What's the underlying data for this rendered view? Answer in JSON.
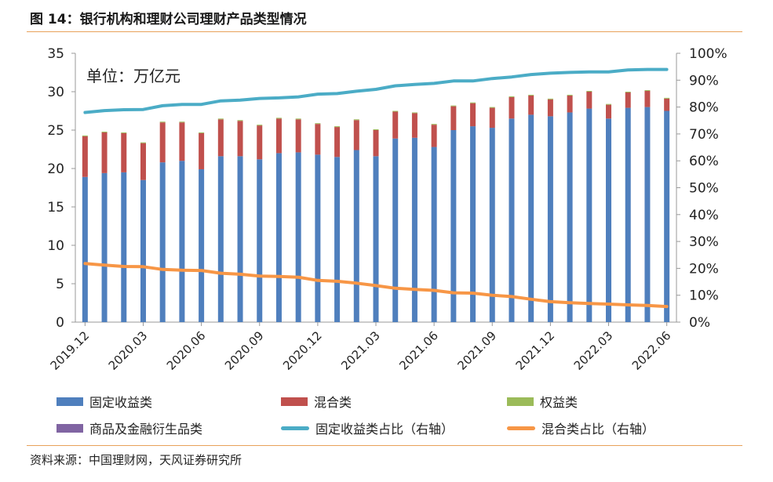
{
  "figure": {
    "title": "图 14：银行机构和理财公司理财产品类型情况",
    "source": "资料来源：中国理财网，天风证券研究所"
  },
  "chart_data": {
    "type": "bar",
    "stacked": true,
    "unit_label": "单位：万亿元",
    "categories": [
      "2019.12",
      "2020.01",
      "2020.02",
      "2020.03",
      "2020.04",
      "2020.05",
      "2020.06",
      "2020.07",
      "2020.08",
      "2020.09",
      "2020.10",
      "2020.11",
      "2020.12",
      "2021.01",
      "2021.02",
      "2021.03",
      "2021.04",
      "2021.05",
      "2021.06",
      "2021.07",
      "2021.08",
      "2021.09",
      "2021.10",
      "2021.11",
      "2021.12",
      "2022.01",
      "2022.02",
      "2022.03",
      "2022.04",
      "2022.05",
      "2022.06"
    ],
    "tick_labels": [
      "2019.12",
      "2020.03",
      "2020.06",
      "2020.09",
      "2020.12",
      "2021.03",
      "2021.06",
      "2021.09",
      "2021.12",
      "2022.03",
      "2022.06"
    ],
    "tick_indices": [
      0,
      3,
      6,
      9,
      12,
      15,
      18,
      21,
      24,
      27,
      30
    ],
    "series": [
      {
        "name": "固定收益类",
        "color": "#4f7fbd",
        "axis": "left",
        "values": [
          18.9,
          19.4,
          19.5,
          18.5,
          20.8,
          21.0,
          19.9,
          21.6,
          21.6,
          21.2,
          22.0,
          22.1,
          21.8,
          21.5,
          22.4,
          21.6,
          23.9,
          24.0,
          22.8,
          25.0,
          25.5,
          25.3,
          26.5,
          27.0,
          26.8,
          27.3,
          27.8,
          26.5,
          27.9,
          28.0,
          27.5
        ]
      },
      {
        "name": "混合类",
        "color": "#c0504d",
        "axis": "left",
        "values": [
          5.3,
          5.3,
          5.1,
          4.8,
          5.2,
          5.0,
          4.7,
          4.8,
          4.6,
          4.4,
          4.5,
          4.3,
          4.0,
          3.9,
          3.9,
          3.4,
          3.5,
          3.2,
          2.9,
          3.1,
          3.0,
          2.6,
          2.8,
          2.5,
          2.2,
          2.2,
          2.2,
          1.8,
          2.0,
          2.1,
          1.6
        ]
      },
      {
        "name": "权益类",
        "color": "#9bbb59",
        "axis": "left",
        "values": [
          0.1,
          0.1,
          0.1,
          0.1,
          0.1,
          0.1,
          0.1,
          0.1,
          0.1,
          0.1,
          0.1,
          0.1,
          0.1,
          0.1,
          0.1,
          0.1,
          0.1,
          0.1,
          0.1,
          0.1,
          0.1,
          0.1,
          0.1,
          0.1,
          0.1,
          0.1,
          0.1,
          0.1,
          0.1,
          0.1,
          0.1
        ]
      },
      {
        "name": "商品及金融衍生品类",
        "color": "#8064a2",
        "axis": "left",
        "values": [
          0,
          0,
          0,
          0,
          0,
          0,
          0,
          0,
          0,
          0,
          0,
          0,
          0,
          0,
          0,
          0,
          0,
          0,
          0,
          0,
          0,
          0,
          0,
          0,
          0,
          0,
          0,
          0,
          0,
          0,
          0
        ]
      },
      {
        "name": "固定收益类占比（右轴）",
        "color": "#4bacc6",
        "axis": "right",
        "type": "line",
        "values": [
          78,
          78.7,
          79,
          79.1,
          80.5,
          81,
          81,
          82.3,
          82.6,
          83.2,
          83.4,
          83.8,
          84.8,
          85,
          85.9,
          86.6,
          87.9,
          88.4,
          88.8,
          89.7,
          89.7,
          90.6,
          91.2,
          92.1,
          92.6,
          92.9,
          93.1,
          93.1,
          93.8,
          94,
          94
        ]
      },
      {
        "name": "混合类占比（右轴）",
        "color": "#f79646",
        "axis": "right",
        "type": "line",
        "values": [
          21.8,
          21.2,
          20.7,
          20.6,
          19.6,
          19.3,
          19.2,
          18.2,
          17.8,
          17.1,
          17,
          16.7,
          15.5,
          15.2,
          14.5,
          13.6,
          12.6,
          12.2,
          11.8,
          10.9,
          10.8,
          10,
          9.5,
          8.5,
          7.6,
          7.2,
          6.9,
          6.7,
          6.4,
          6.2,
          5.8
        ]
      }
    ],
    "y_left": {
      "min": 0,
      "max": 35,
      "ticks": [
        "0",
        "5",
        "10",
        "15",
        "20",
        "25",
        "30",
        "35"
      ]
    },
    "y_right": {
      "min": 0,
      "max": 100,
      "ticks": [
        "0%",
        "10%",
        "20%",
        "30%",
        "40%",
        "50%",
        "60%",
        "70%",
        "80%",
        "90%",
        "100%"
      ]
    },
    "legend": [
      "固定收益类",
      "混合类",
      "权益类",
      "商品及金融衍生品类",
      "固定收益类占比（右轴）",
      "混合类占比（右轴）"
    ]
  }
}
